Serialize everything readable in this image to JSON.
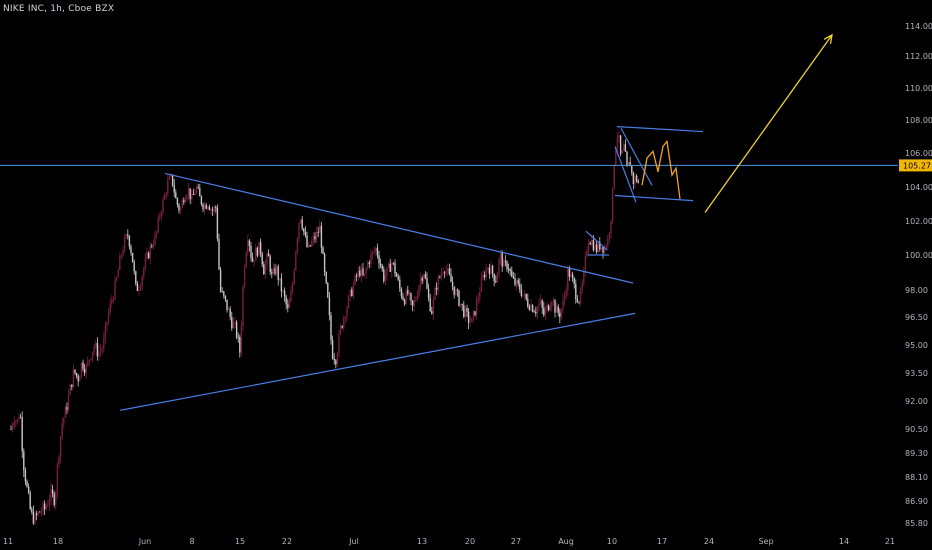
{
  "header": {
    "title": "NIKE INC, 1h, Cboe BZX"
  },
  "chart_data": {
    "type": "candlestick",
    "title": "NIKE INC, 1h, Cboe BZX",
    "colors": {
      "background": "#000000",
      "up": "#7a1f3d",
      "down": "#c8c8c8",
      "trendline": "#4a7fe8",
      "horizontal": "#4a9be8",
      "projection": "#f2d22e",
      "path": "#f2a31e",
      "price_badge": "#f2b705"
    },
    "y_axis": {
      "ticks": [
        "114.00",
        "112.00",
        "110.00",
        "108.00",
        "106.00",
        "104.00",
        "102.00",
        "100.00",
        "98.00",
        "96.50",
        "95.00",
        "93.50",
        "92.00",
        "90.50",
        "89.30",
        "88.10",
        "86.90",
        "85.80"
      ],
      "current_price": "105.27",
      "ylim": [
        85.4,
        115
      ]
    },
    "x_axis": {
      "ticks": [
        "11",
        "18",
        "Jun",
        "8",
        "15",
        "22",
        "Jul",
        "13",
        "20",
        "27",
        "Aug",
        "10",
        "17",
        "24",
        "Sep",
        "14",
        "21"
      ]
    },
    "price_path": [
      [
        11,
        90.5
      ],
      [
        14,
        91.2
      ],
      [
        17,
        90.8
      ],
      [
        20,
        91.6
      ],
      [
        23,
        89.0
      ],
      [
        27,
        87.5
      ],
      [
        31,
        86.2
      ],
      [
        35,
        86.0
      ],
      [
        40,
        86.4
      ],
      [
        45,
        86.5
      ],
      [
        50,
        87.2
      ],
      [
        55,
        87.0
      ],
      [
        58,
        89.0
      ],
      [
        62,
        90.8
      ],
      [
        66,
        91.5
      ],
      [
        70,
        92.6
      ],
      [
        74,
        93.6
      ],
      [
        78,
        93.2
      ],
      [
        82,
        94.1
      ],
      [
        86,
        93.7
      ],
      [
        90,
        94.4
      ],
      [
        94,
        95.0
      ],
      [
        98,
        94.6
      ],
      [
        103,
        94.9
      ],
      [
        108,
        96.6
      ],
      [
        112,
        97.5
      ],
      [
        116,
        98.4
      ],
      [
        120,
        99.7
      ],
      [
        124,
        100.7
      ],
      [
        128,
        101.2
      ],
      [
        132,
        100.0
      ],
      [
        136,
        98.0
      ],
      [
        140,
        98.4
      ],
      [
        144,
        99.3
      ],
      [
        148,
        100.0
      ],
      [
        152,
        100.7
      ],
      [
        156,
        101.1
      ],
      [
        160,
        102.5
      ],
      [
        164,
        103.3
      ],
      [
        168,
        104.3
      ],
      [
        172,
        104.5
      ],
      [
        176,
        103.2
      ],
      [
        180,
        102.6
      ],
      [
        184,
        103.5
      ],
      [
        188,
        103.9
      ],
      [
        192,
        103.2
      ],
      [
        196,
        104.0
      ],
      [
        200,
        103.3
      ],
      [
        204,
        102.9
      ],
      [
        208,
        103.1
      ],
      [
        212,
        102.6
      ],
      [
        216,
        102.8
      ],
      [
        220,
        98.0
      ],
      [
        224,
        97.5
      ],
      [
        228,
        96.9
      ],
      [
        232,
        96.2
      ],
      [
        236,
        95.8
      ],
      [
        240,
        94.6
      ],
      [
        244,
        99.3
      ],
      [
        248,
        101.3
      ],
      [
        252,
        99.6
      ],
      [
        256,
        100.2
      ],
      [
        260,
        100.5
      ],
      [
        264,
        99.1
      ],
      [
        268,
        100.0
      ],
      [
        272,
        98.7
      ],
      [
        276,
        99.3
      ],
      [
        280,
        98.3
      ],
      [
        284,
        97.6
      ],
      [
        288,
        96.8
      ],
      [
        292,
        98.0
      ],
      [
        296,
        100.5
      ],
      [
        300,
        102.5
      ],
      [
        304,
        101.3
      ],
      [
        308,
        100.2
      ],
      [
        312,
        100.8
      ],
      [
        316,
        101.1
      ],
      [
        320,
        101.6
      ],
      [
        324,
        99.1
      ],
      [
        328,
        97.3
      ],
      [
        332,
        94.6
      ],
      [
        336,
        94.3
      ],
      [
        340,
        95.7
      ],
      [
        344,
        96.6
      ],
      [
        348,
        97.3
      ],
      [
        352,
        98.0
      ],
      [
        356,
        98.7
      ],
      [
        360,
        99.1
      ],
      [
        364,
        98.6
      ],
      [
        368,
        99.6
      ],
      [
        372,
        100.0
      ],
      [
        376,
        100.4
      ],
      [
        380,
        99.6
      ],
      [
        384,
        98.7
      ],
      [
        388,
        99.1
      ],
      [
        392,
        99.6
      ],
      [
        396,
        98.9
      ],
      [
        400,
        98.0
      ],
      [
        404,
        97.5
      ],
      [
        408,
        97.8
      ],
      [
        412,
        96.9
      ],
      [
        416,
        97.6
      ],
      [
        420,
        98.6
      ],
      [
        424,
        99.1
      ],
      [
        428,
        97.6
      ],
      [
        432,
        96.8
      ],
      [
        436,
        98.2
      ],
      [
        440,
        98.8
      ],
      [
        444,
        99.4
      ],
      [
        448,
        98.9
      ],
      [
        452,
        98.3
      ],
      [
        456,
        97.8
      ],
      [
        460,
        97.3
      ],
      [
        464,
        96.8
      ],
      [
        468,
        96.4
      ],
      [
        472,
        96.2
      ],
      [
        476,
        97.1
      ],
      [
        480,
        98.1
      ],
      [
        484,
        98.9
      ],
      [
        488,
        99.4
      ],
      [
        492,
        99.0
      ],
      [
        496,
        98.6
      ],
      [
        500,
        100.0
      ],
      [
        504,
        99.3
      ],
      [
        508,
        99.5
      ],
      [
        512,
        98.6
      ],
      [
        516,
        98.3
      ],
      [
        520,
        98.1
      ],
      [
        524,
        97.6
      ],
      [
        528,
        97.3
      ],
      [
        532,
        97.1
      ],
      [
        536,
        96.9
      ],
      [
        540,
        97.3
      ],
      [
        544,
        96.6
      ],
      [
        548,
        97.1
      ],
      [
        552,
        97.6
      ],
      [
        556,
        96.8
      ],
      [
        560,
        96.7
      ],
      [
        564,
        97.4
      ],
      [
        568,
        99.1
      ],
      [
        572,
        98.6
      ],
      [
        576,
        97.8
      ],
      [
        580,
        97.4
      ],
      [
        584,
        98.9
      ],
      [
        588,
        101.0
      ],
      [
        592,
        100.8
      ],
      [
        596,
        100.3
      ],
      [
        600,
        100.6
      ],
      [
        604,
        100.4
      ],
      [
        608,
        100.9
      ],
      [
        610,
        101.8
      ],
      [
        612,
        102.8
      ],
      [
        614,
        105.4
      ],
      [
        616,
        106.6
      ],
      [
        618,
        107.3
      ],
      [
        621,
        105.6
      ],
      [
        624,
        106.4
      ],
      [
        627,
        105.0
      ],
      [
        630,
        105.5
      ],
      [
        633,
        104.3
      ],
      [
        636,
        104.6
      ],
      [
        639,
        104.1
      ]
    ],
    "annotations": [
      {
        "type": "trendline",
        "points": [
          [
            165,
            104.8
          ],
          [
            633,
            98.4
          ]
        ]
      },
      {
        "type": "trendline",
        "points": [
          [
            120,
            91.5
          ],
          [
            635,
            96.7
          ]
        ]
      },
      {
        "type": "horizontal",
        "price": 105.27
      },
      {
        "type": "trendline",
        "points": [
          [
            617,
            107.6
          ],
          [
            703,
            107.3
          ]
        ]
      },
      {
        "type": "trendline",
        "points": [
          [
            615,
            103.5
          ],
          [
            693,
            103.2
          ]
        ]
      },
      {
        "type": "trendline",
        "points": [
          [
            621,
            107.5
          ],
          [
            652,
            104.1
          ]
        ]
      },
      {
        "type": "trendline",
        "points": [
          [
            615,
            106.4
          ],
          [
            636,
            103.1
          ]
        ]
      },
      {
        "type": "trendline",
        "points": [
          [
            586,
            101.4
          ],
          [
            607,
            100.3
          ]
        ]
      },
      {
        "type": "trendline",
        "points": [
          [
            588,
            100.0
          ],
          [
            609,
            100.0
          ]
        ]
      },
      {
        "type": "path",
        "points": [
          [
            642,
            104.1
          ],
          [
            647,
            105.7
          ],
          [
            653,
            106.1
          ],
          [
            658,
            104.9
          ],
          [
            663,
            106.4
          ],
          [
            667,
            106.7
          ],
          [
            672,
            104.7
          ],
          [
            676,
            105.1
          ],
          [
            680,
            103.3
          ]
        ]
      },
      {
        "type": "arrow",
        "points": [
          [
            705,
            102.5
          ],
          [
            832,
            113.4
          ]
        ]
      }
    ]
  }
}
